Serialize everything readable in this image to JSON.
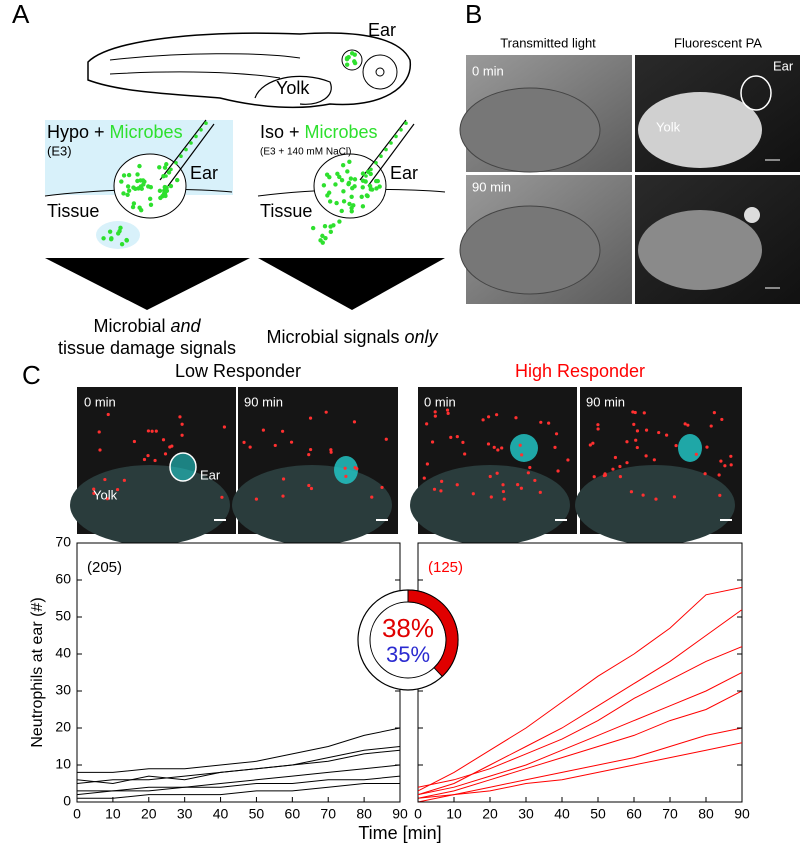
{
  "panel_a": {
    "letter": "A",
    "fish_ear": "Ear",
    "fish_yolk": "Yolk",
    "left": {
      "condition": "Hypo + ",
      "microbes": "Microbes",
      "medium": "(E3)",
      "ear": "Ear",
      "tissue": "Tissue",
      "caption_1": "Microbial ",
      "caption_1_italic": "and",
      "caption_2": "tissue damage signals"
    },
    "right": {
      "condition": "Iso + ",
      "microbes": "Microbes",
      "medium": "(E3 + 140 mM NaCl)",
      "ear": "Ear",
      "tissue": "Tissue",
      "caption_1": "Microbial signals ",
      "caption_1_italic": "only"
    }
  },
  "panel_b": {
    "letter": "B",
    "columns": [
      "Transmitted light",
      "Fluorescent PA"
    ],
    "times": [
      "0 min",
      "90 min"
    ],
    "ear": "Ear",
    "yolk": "Yolk"
  },
  "panel_c": {
    "letter": "C",
    "groups": [
      "Low Responder",
      "High Responder"
    ],
    "times": [
      "0 min",
      "90 min",
      "0 min",
      "90 min"
    ],
    "ear": "Ear",
    "yolk": "Yolk",
    "x_label": "Time [min]",
    "donut": {
      "values": [
        38
      ],
      "value_labels": [
        "38%"
      ],
      "color": "#e00000",
      "second_label": "35%",
      "second_color": "#2a2ad0"
    }
  },
  "chart_data": [
    {
      "type": "line",
      "annotation": "(205)",
      "y_label": "Neutrophils at ear (#)",
      "color": "#000000",
      "x": [
        0,
        10,
        20,
        30,
        40,
        50,
        60,
        70,
        80,
        90
      ],
      "xlim": [
        0,
        90
      ],
      "ylim": [
        0,
        70
      ],
      "xticks": [
        0,
        10,
        20,
        30,
        40,
        50,
        60,
        70,
        80,
        90
      ],
      "yticks": [
        0,
        10,
        20,
        30,
        40,
        50,
        60,
        70
      ],
      "series": [
        {
          "values": [
            3,
            3,
            4,
            4,
            5,
            6,
            7,
            8,
            9,
            10
          ]
        },
        {
          "values": [
            5,
            6,
            6,
            7,
            8,
            9,
            10,
            12,
            14,
            15
          ]
        },
        {
          "values": [
            8,
            8,
            9,
            9,
            10,
            11,
            13,
            15,
            18,
            20
          ]
        },
        {
          "values": [
            1,
            1,
            2,
            2,
            2,
            3,
            3,
            4,
            5,
            5
          ]
        },
        {
          "values": [
            2,
            3,
            3,
            4,
            4,
            5,
            5,
            6,
            6,
            7
          ]
        },
        {
          "values": [
            6,
            5,
            7,
            6,
            8,
            9,
            10,
            11,
            13,
            14
          ]
        }
      ]
    },
    {
      "type": "line",
      "annotation": "(125)",
      "color": "#ff0000",
      "x": [
        0,
        10,
        20,
        30,
        40,
        50,
        60,
        70,
        80,
        90
      ],
      "xlim": [
        0,
        90
      ],
      "ylim": [
        0,
        70
      ],
      "xticks": [
        0,
        10,
        20,
        30,
        40,
        50,
        60,
        70,
        80,
        90
      ],
      "yticks": [
        0,
        10,
        20,
        30,
        40,
        50,
        60,
        70
      ],
      "series": [
        {
          "values": [
            2,
            5,
            10,
            15,
            20,
            26,
            32,
            38,
            45,
            52
          ]
        },
        {
          "values": [
            3,
            8,
            14,
            20,
            27,
            34,
            40,
            47,
            56,
            58
          ]
        },
        {
          "values": [
            1,
            3,
            6,
            9,
            12,
            15,
            18,
            22,
            25,
            30
          ]
        },
        {
          "values": [
            2,
            4,
            7,
            10,
            14,
            18,
            22,
            26,
            30,
            35
          ]
        },
        {
          "values": [
            1,
            2,
            4,
            6,
            8,
            10,
            12,
            15,
            18,
            20
          ]
        },
        {
          "values": [
            4,
            6,
            9,
            13,
            17,
            22,
            28,
            33,
            38,
            42
          ]
        },
        {
          "values": [
            0,
            2,
            3,
            5,
            6,
            8,
            10,
            12,
            14,
            16
          ]
        }
      ]
    }
  ]
}
